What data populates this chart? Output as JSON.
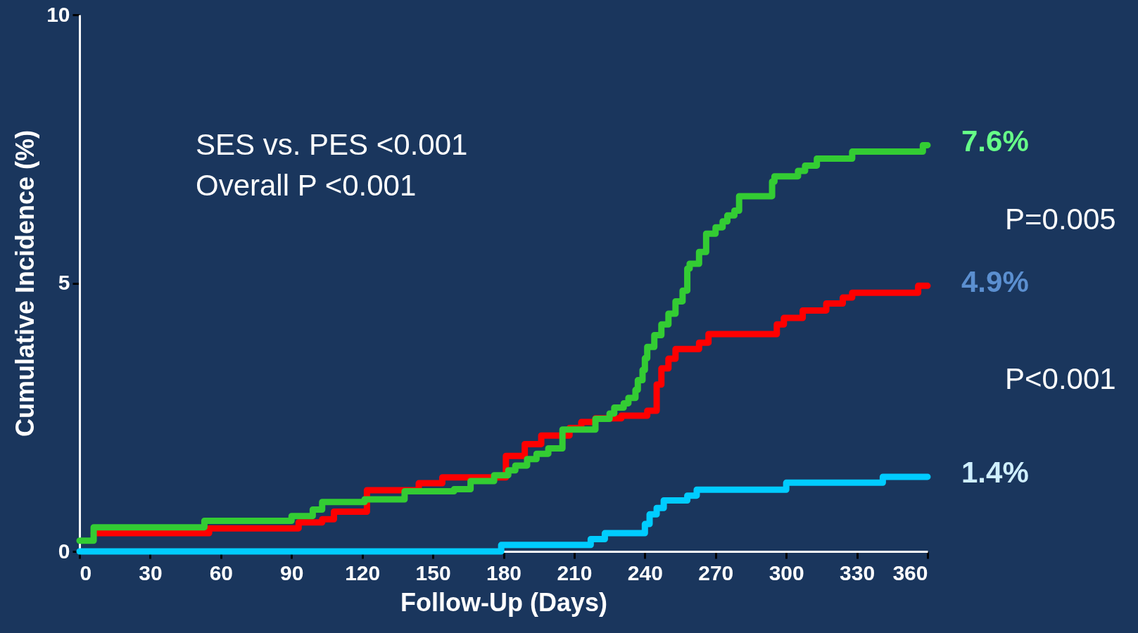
{
  "chart_data": {
    "type": "step",
    "xlabel": "Follow-Up (Days)",
    "ylabel": "Cumulative Incidence (%)",
    "xlim": [
      0,
      360
    ],
    "xticks": [
      0,
      30,
      60,
      90,
      120,
      150,
      180,
      210,
      240,
      270,
      300,
      330,
      360
    ],
    "ylim": [
      0,
      10
    ],
    "yticks": [
      0,
      5,
      10
    ],
    "grid": false,
    "marker": "none",
    "line_style": "solid",
    "series": [
      {
        "color": "#ff0000",
        "x": [
          6,
          55,
          93,
          103,
          108,
          122,
          144,
          154,
          181,
          189,
          196,
          208,
          213,
          219,
          230,
          241,
          245,
          247,
          250,
          253,
          263,
          267,
          296,
          299,
          307,
          317,
          324,
          328,
          356,
          360
        ],
        "values": [
          0.34,
          0.43,
          0.54,
          0.6,
          0.74,
          1.14,
          1.27,
          1.38,
          1.78,
          2.0,
          2.16,
          2.3,
          2.41,
          2.48,
          2.53,
          2.62,
          3.11,
          3.41,
          3.59,
          3.77,
          3.89,
          4.05,
          4.23,
          4.35,
          4.49,
          4.62,
          4.73,
          4.82,
          4.95,
          4.95
        ]
      },
      {
        "color": "#33cc33",
        "x": [
          0,
          6,
          53,
          90,
          99,
          103,
          121,
          138,
          159,
          166,
          176,
          182,
          185,
          190,
          194,
          199,
          205,
          219,
          225,
          227,
          231,
          233,
          236,
          237,
          239,
          240,
          241,
          244,
          247,
          250,
          253,
          256,
          258,
          259,
          263,
          266,
          270,
          273,
          275,
          278,
          280,
          294,
          295,
          305,
          308,
          313,
          328,
          358,
          360
        ],
        "values": [
          0.2,
          0.45,
          0.57,
          0.66,
          0.78,
          0.92,
          0.97,
          1.12,
          1.16,
          1.31,
          1.42,
          1.51,
          1.6,
          1.72,
          1.82,
          1.92,
          2.27,
          2.47,
          2.57,
          2.68,
          2.76,
          2.86,
          3.01,
          3.19,
          3.38,
          3.6,
          3.81,
          4.03,
          4.23,
          4.43,
          4.66,
          4.86,
          5.27,
          5.36,
          5.58,
          5.92,
          6.04,
          6.15,
          6.26,
          6.35,
          6.62,
          6.89,
          6.99,
          7.09,
          7.19,
          7.32,
          7.45,
          7.57,
          7.57
        ]
      },
      {
        "color": "#00ccff",
        "x": [
          0,
          179,
          217,
          223,
          240,
          242,
          245,
          248,
          258,
          262,
          300,
          341,
          360
        ],
        "values": [
          0.0,
          0.12,
          0.23,
          0.34,
          0.51,
          0.69,
          0.81,
          0.95,
          1.04,
          1.15,
          1.28,
          1.39,
          1.39
        ]
      }
    ],
    "annotations": [
      "SES vs. PES <0.001",
      "Overall P <0.001",
      "7.6%",
      "4.9%",
      "1.4%",
      "P=0.005",
      "P<0.001"
    ]
  }
}
